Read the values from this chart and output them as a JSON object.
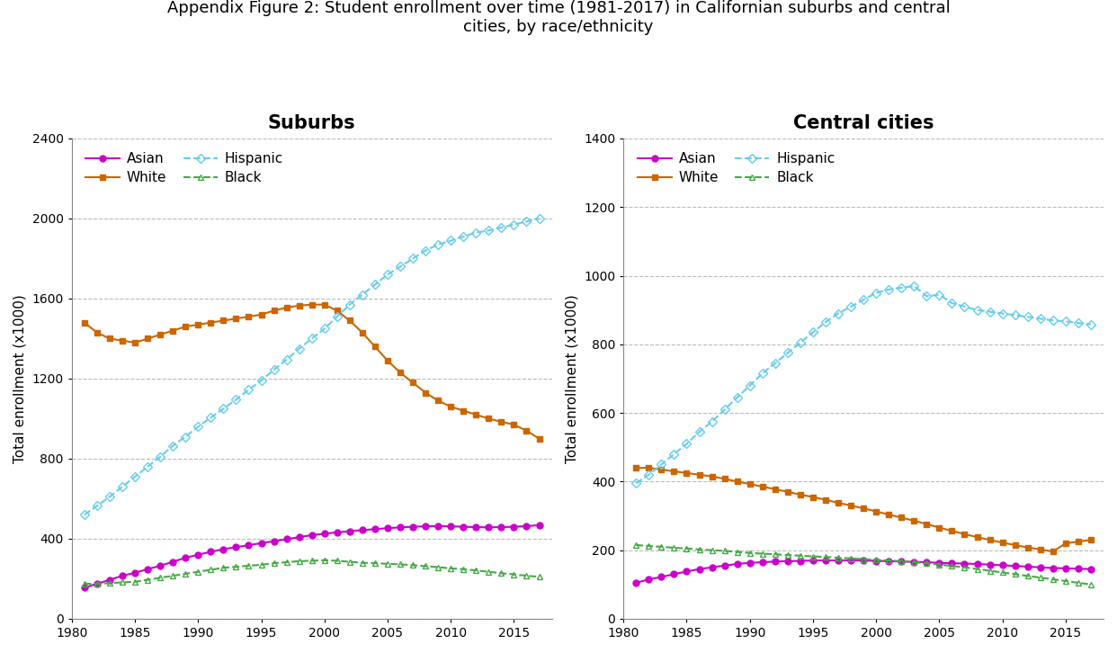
{
  "title": "Appendix Figure 2: Student enrollment over time (1981-2017) in Californian suburbs and central\ncities, by race/ethnicity",
  "years": [
    1981,
    1982,
    1983,
    1984,
    1985,
    1986,
    1987,
    1988,
    1989,
    1990,
    1991,
    1992,
    1993,
    1994,
    1995,
    1996,
    1997,
    1998,
    1999,
    2000,
    2001,
    2002,
    2003,
    2004,
    2005,
    2006,
    2007,
    2008,
    2009,
    2010,
    2011,
    2012,
    2013,
    2014,
    2015,
    2016,
    2017
  ],
  "suburbs": {
    "Asian": [
      155,
      175,
      195,
      215,
      230,
      248,
      265,
      285,
      305,
      320,
      335,
      348,
      358,
      368,
      378,
      388,
      398,
      408,
      418,
      425,
      432,
      438,
      443,
      448,
      453,
      457,
      460,
      462,
      463,
      462,
      460,
      458,
      457,
      458,
      460,
      463,
      468
    ],
    "White": [
      1480,
      1430,
      1400,
      1390,
      1380,
      1400,
      1420,
      1440,
      1460,
      1470,
      1480,
      1490,
      1500,
      1510,
      1520,
      1540,
      1555,
      1565,
      1570,
      1570,
      1540,
      1490,
      1430,
      1360,
      1290,
      1230,
      1180,
      1130,
      1090,
      1060,
      1040,
      1020,
      1000,
      985,
      970,
      940,
      900
    ],
    "Hispanic": [
      520,
      565,
      610,
      660,
      710,
      760,
      810,
      865,
      910,
      960,
      1005,
      1050,
      1095,
      1145,
      1190,
      1245,
      1295,
      1350,
      1400,
      1450,
      1510,
      1570,
      1620,
      1670,
      1720,
      1760,
      1800,
      1840,
      1870,
      1890,
      1910,
      1930,
      1940,
      1955,
      1970,
      1985,
      2000
    ],
    "Black": [
      175,
      175,
      178,
      182,
      185,
      195,
      205,
      215,
      225,
      235,
      245,
      255,
      260,
      265,
      270,
      278,
      283,
      288,
      290,
      293,
      290,
      285,
      280,
      278,
      275,
      272,
      268,
      263,
      258,
      252,
      248,
      242,
      235,
      228,
      222,
      215,
      210
    ]
  },
  "cities": {
    "Asian": [
      105,
      115,
      122,
      130,
      138,
      145,
      150,
      155,
      160,
      163,
      165,
      167,
      168,
      169,
      170,
      170,
      170,
      170,
      170,
      169,
      168,
      167,
      166,
      165,
      163,
      162,
      161,
      160,
      158,
      156,
      154,
      152,
      150,
      148,
      147,
      146,
      145
    ],
    "White": [
      440,
      440,
      435,
      430,
      425,
      420,
      415,
      408,
      400,
      393,
      385,
      378,
      370,
      362,
      355,
      347,
      338,
      330,
      322,
      313,
      304,
      295,
      286,
      276,
      266,
      256,
      247,
      238,
      230,
      222,
      215,
      208,
      202,
      196,
      220,
      225,
      230
    ],
    "Hispanic": [
      395,
      420,
      450,
      480,
      510,
      545,
      575,
      610,
      645,
      680,
      715,
      745,
      775,
      805,
      835,
      865,
      890,
      910,
      930,
      950,
      960,
      965,
      970,
      940,
      945,
      920,
      910,
      900,
      895,
      890,
      885,
      880,
      875,
      870,
      867,
      862,
      858
    ],
    "Black": [
      215,
      212,
      210,
      207,
      205,
      202,
      200,
      198,
      195,
      192,
      190,
      188,
      186,
      184,
      182,
      180,
      178,
      176,
      174,
      172,
      170,
      168,
      165,
      162,
      158,
      154,
      150,
      145,
      140,
      135,
      130,
      125,
      120,
      115,
      110,
      105,
      100
    ]
  },
  "colors": {
    "Asian": "#CC00CC",
    "White": "#CC6600",
    "Hispanic": "#66CCEE",
    "Black": "#44AA44"
  },
  "suburb_ylim": [
    0,
    2400
  ],
  "city_ylim": [
    0,
    1400
  ],
  "suburb_yticks": [
    0,
    400,
    800,
    1200,
    1600,
    2000,
    2400
  ],
  "city_yticks": [
    0,
    200,
    400,
    600,
    800,
    1000,
    1200,
    1400
  ],
  "xticks": [
    1980,
    1985,
    1990,
    1995,
    2000,
    2005,
    2010,
    2015
  ],
  "ylabel": "Total enrollment (x1000)",
  "ylabel_fontsize": 11,
  "title_fontsize": 13,
  "subplot_title_fontsize": 15,
  "tick_labelsize": 10,
  "legend_fontsize": 11,
  "background_color": "#ffffff",
  "grid_color": "#bbbbbb",
  "spine_color": "#888888"
}
